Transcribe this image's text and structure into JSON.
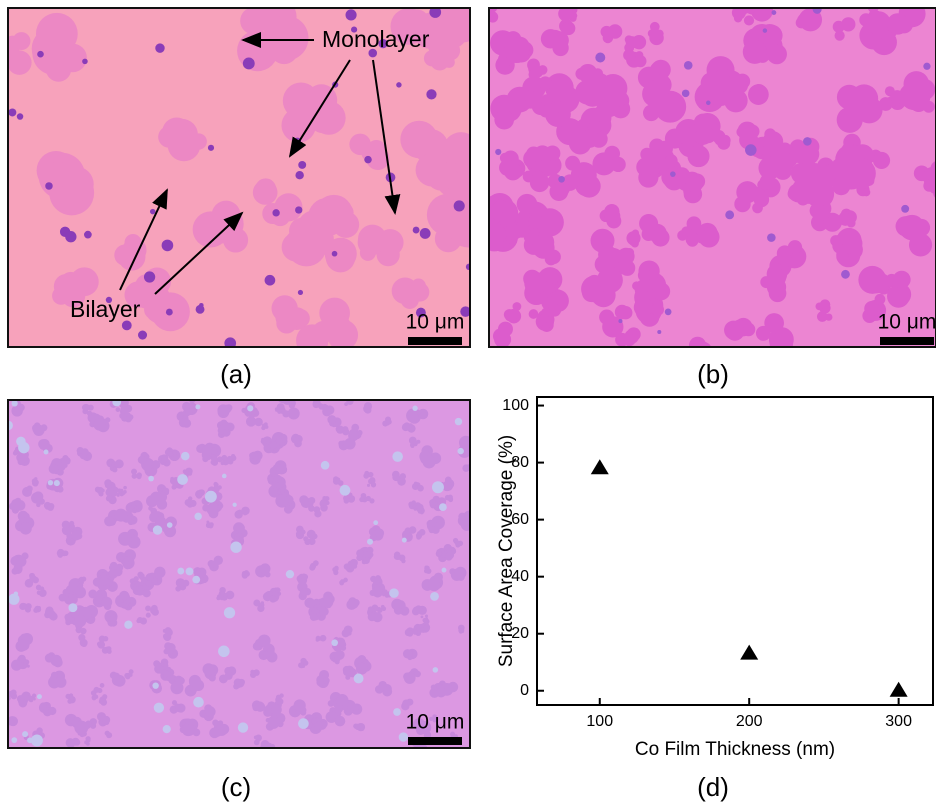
{
  "panels": [
    {
      "label": "(a)",
      "scale_bar": "10 μm",
      "annotations": [
        "Monolayer",
        "Bilayer"
      ]
    },
    {
      "label": "(b)",
      "scale_bar": "10 μm"
    },
    {
      "label": "(c)",
      "scale_bar": "10 μm"
    }
  ],
  "chart_data": {
    "type": "scatter",
    "panel_label": "(d)",
    "x_label": "Co Film Thickness (nm)",
    "y_label": "Surface Area Coverage (%)",
    "x": [
      100,
      200,
      300
    ],
    "values": [
      78,
      13,
      0
    ],
    "xlim": [
      58,
      323
    ],
    "ylim": [
      -5,
      103
    ],
    "xticks": [
      100,
      200,
      300
    ],
    "yticks": [
      0,
      20,
      40,
      60,
      80,
      100
    ],
    "marker": "triangle",
    "color": "#000000"
  }
}
